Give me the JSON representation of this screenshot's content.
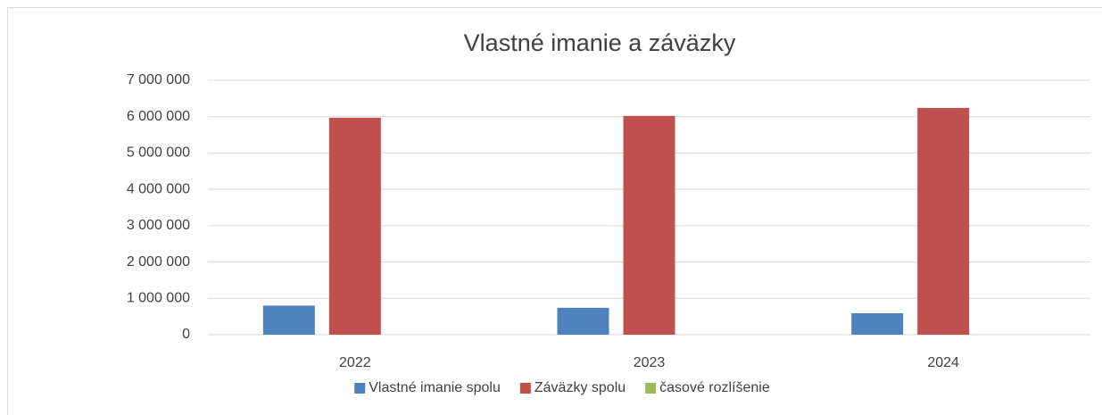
{
  "chart_data": {
    "type": "bar",
    "title": "Vlastné imanie a záväzky",
    "categories": [
      "2022",
      "2023",
      "2024"
    ],
    "series": [
      {
        "name": "Vlastné imanie spolu",
        "color": "#4f81bd",
        "values": [
          800000,
          740000,
          590000
        ]
      },
      {
        "name": "Záväzky spolu",
        "color": "#c0504d",
        "values": [
          5970000,
          6020000,
          6240000
        ]
      },
      {
        "name": "časové rozlíšenie",
        "color": "#9bbb59",
        "values": [
          0,
          0,
          0
        ]
      }
    ],
    "ylim": [
      0,
      7000000
    ],
    "yticks": [
      {
        "value": 0,
        "label": "0"
      },
      {
        "value": 1000000,
        "label": "1 000 000"
      },
      {
        "value": 2000000,
        "label": "2 000 000"
      },
      {
        "value": 3000000,
        "label": "3 000 000"
      },
      {
        "value": 4000000,
        "label": "4 000 000"
      },
      {
        "value": 5000000,
        "label": "5 000 000"
      },
      {
        "value": 6000000,
        "label": "6 000 000"
      },
      {
        "value": 7000000,
        "label": "7 000 000"
      }
    ],
    "grid": true,
    "legend": "bottom"
  }
}
